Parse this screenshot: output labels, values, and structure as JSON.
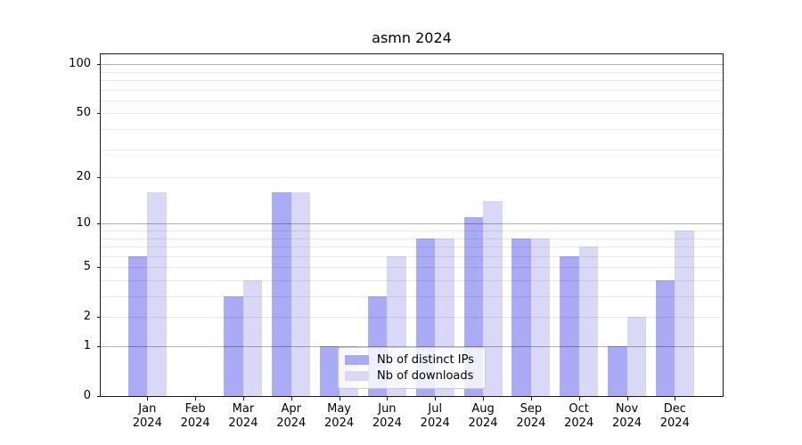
{
  "chart_data": {
    "type": "bar",
    "title": "asmn 2024",
    "categories": [
      "Jan 2024",
      "Feb 2024",
      "Mar 2024",
      "Apr 2024",
      "May 2024",
      "Jun 2024",
      "Jul 2024",
      "Aug 2024",
      "Sep 2024",
      "Oct 2024",
      "Nov 2024",
      "Dec 2024"
    ],
    "series": [
      {
        "name": "Nb of distinct IPs",
        "color": "#aaaaf5",
        "values": [
          6,
          0,
          3,
          16,
          1,
          3,
          8,
          11,
          8,
          6,
          1,
          4
        ]
      },
      {
        "name": "Nb of downloads",
        "color": "#d9d9f7",
        "values": [
          16,
          0,
          4,
          16,
          1,
          6,
          8,
          14,
          8,
          7,
          2,
          9
        ]
      }
    ],
    "y_axis": {
      "scale": "log1p",
      "ylim": [
        0,
        115
      ],
      "tick_values": [
        0,
        1,
        2,
        5,
        10,
        20,
        50,
        100
      ],
      "tick_labels": [
        "0",
        "1",
        "2",
        "5",
        "10",
        "20",
        "50",
        "100"
      ],
      "major_grid": [
        1,
        10,
        100
      ],
      "minor_grid": [
        2,
        3,
        4,
        5,
        6,
        7,
        8,
        9,
        20,
        30,
        40,
        50,
        60,
        70,
        80,
        90
      ]
    },
    "legend": {
      "position": "lower center"
    },
    "grid": true
  }
}
